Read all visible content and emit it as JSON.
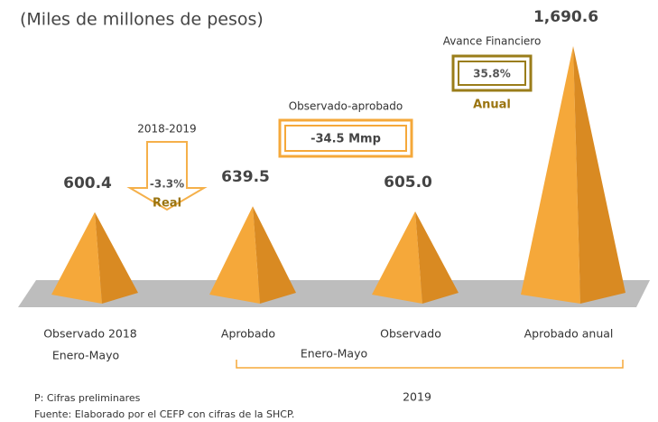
{
  "chart_data": {
    "type": "pyramid",
    "subtitle": "(Miles de millones de pesos)",
    "categories": [
      "Observado 2018",
      "Aprobado",
      "Observado",
      "Aprobado anual"
    ],
    "values": [
      600.4,
      639.5,
      605.0,
      1690.6
    ],
    "value_labels": [
      "600.4",
      "639.5",
      "605.0",
      "1,690.6"
    ],
    "color": "#f5a83a",
    "annotations": {
      "real_change": {
        "title": "2018-2019",
        "value": "-3.3%",
        "label": "Real"
      },
      "difference": {
        "title": "Observado-aprobado",
        "value": "-34.5 Mmp"
      },
      "progress": {
        "title": "Avance Financiero",
        "value": "35.8%",
        "label": "Anual"
      },
      "period_2018": "Enero-Mayo",
      "period_2019": "Enero-Mayo",
      "year": "2019"
    },
    "notes": [
      "P: Cifras preliminares",
      "Fuente: Elaborado por el CEFP con cifras de la SHCP."
    ]
  }
}
